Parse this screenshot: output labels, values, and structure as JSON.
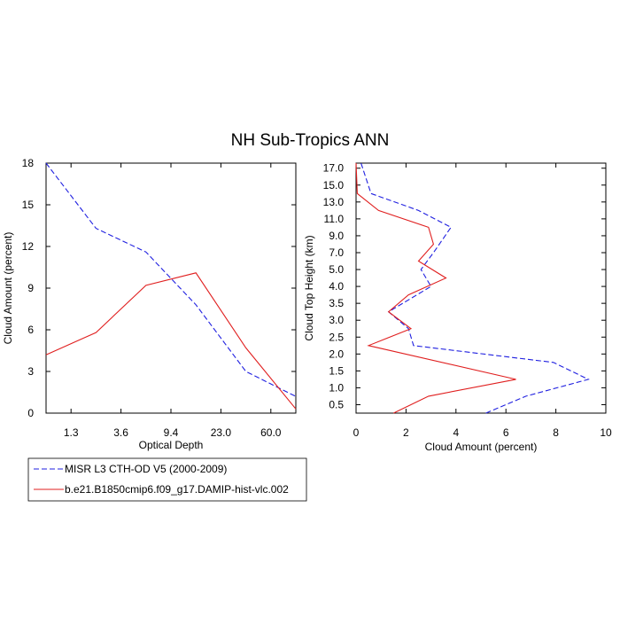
{
  "title": "NH Sub-Tropics ANN",
  "colors": {
    "obs": "#1f1fe0",
    "model": "#e01f1f",
    "axis": "#000000"
  },
  "legend": [
    {
      "label": "MISR L3 CTH-OD V5 (2000-2009)",
      "style": "dashed",
      "color": "#1f1fe0"
    },
    {
      "label": "b.e21.B1850cmip6.f09_g17.DAMIP-hist-vlc.002",
      "style": "solid",
      "color": "#e01f1f"
    }
  ],
  "chart_data": [
    {
      "type": "line",
      "xlabel": "Optical Depth",
      "ylabel": "Cloud Amount (percent)",
      "x_tick_labels": [
        "1.3",
        "3.6",
        "9.4",
        "23.0",
        "60.0"
      ],
      "x_tick_positions": [
        0.5,
        1.5,
        2.5,
        3.5,
        4.5
      ],
      "y_ticks": [
        0,
        3,
        6,
        9,
        12,
        15,
        18
      ],
      "xlim": [
        0,
        5
      ],
      "ylim": [
        0,
        18
      ],
      "series": [
        {
          "name": "MISR L3 CTH-OD V5 (2000-2009)",
          "style": "dashed",
          "color": "#1f1fe0",
          "x": [
            0,
            1,
            2,
            3,
            4,
            5
          ],
          "y": [
            18.0,
            13.3,
            11.6,
            7.8,
            3.0,
            1.2
          ]
        },
        {
          "name": "b.e21.B1850cmip6.f09_g17.DAMIP-hist-vlc.002",
          "style": "solid",
          "color": "#e01f1f",
          "x": [
            0,
            1,
            2,
            3,
            4,
            5
          ],
          "y": [
            4.2,
            5.8,
            9.2,
            10.1,
            4.7,
            0.3
          ]
        }
      ]
    },
    {
      "type": "line",
      "xlabel": "Cloud Amount (percent)",
      "ylabel": "Cloud Top Height (km)",
      "x_ticks": [
        0,
        2,
        4,
        6,
        8,
        10
      ],
      "xlim": [
        0,
        10
      ],
      "y_tick_labels": [
        "0.5",
        "1.0",
        "1.5",
        "2.0",
        "2.5",
        "3.0",
        "3.5",
        "4.0",
        "5.0",
        "7.0",
        "9.0",
        "11.0",
        "13.0",
        "15.0",
        "17.0"
      ],
      "y_tick_positions": [
        0.5,
        1.5,
        2.5,
        3.5,
        4.5,
        5.5,
        6.5,
        7.5,
        8.5,
        9.5,
        10.5,
        11.5,
        12.5,
        13.5,
        14.5
      ],
      "ylim": [
        0,
        14.8
      ],
      "series": [
        {
          "name": "MISR L3 CTH-OD V5 (2000-2009)",
          "style": "dashed",
          "color": "#1f1fe0",
          "x": [
            5.2,
            6.8,
            9.3,
            7.9,
            2.3,
            2.1,
            1.3,
            3.0,
            2.6,
            3.1,
            3.8,
            2.5,
            0.6,
            0.2
          ],
          "y": [
            0,
            1.0,
            2.0,
            3.0,
            4.0,
            5.0,
            6.0,
            7.5,
            8.5,
            9.5,
            11.0,
            12.0,
            13.0,
            14.8
          ]
        },
        {
          "name": "b.e21.B1850cmip6.f09_g17.DAMIP-hist-vlc.002",
          "style": "solid",
          "color": "#e01f1f",
          "x": [
            1.5,
            2.9,
            6.4,
            0.5,
            2.2,
            1.3,
            2.1,
            3.6,
            2.5,
            3.1,
            2.9,
            0.9,
            0.05,
            0.0
          ],
          "y": [
            0,
            1.0,
            2.0,
            4.0,
            5.0,
            6.0,
            7.0,
            8.0,
            9.0,
            10.0,
            11.0,
            12.0,
            13.0,
            14.8
          ]
        }
      ]
    }
  ]
}
